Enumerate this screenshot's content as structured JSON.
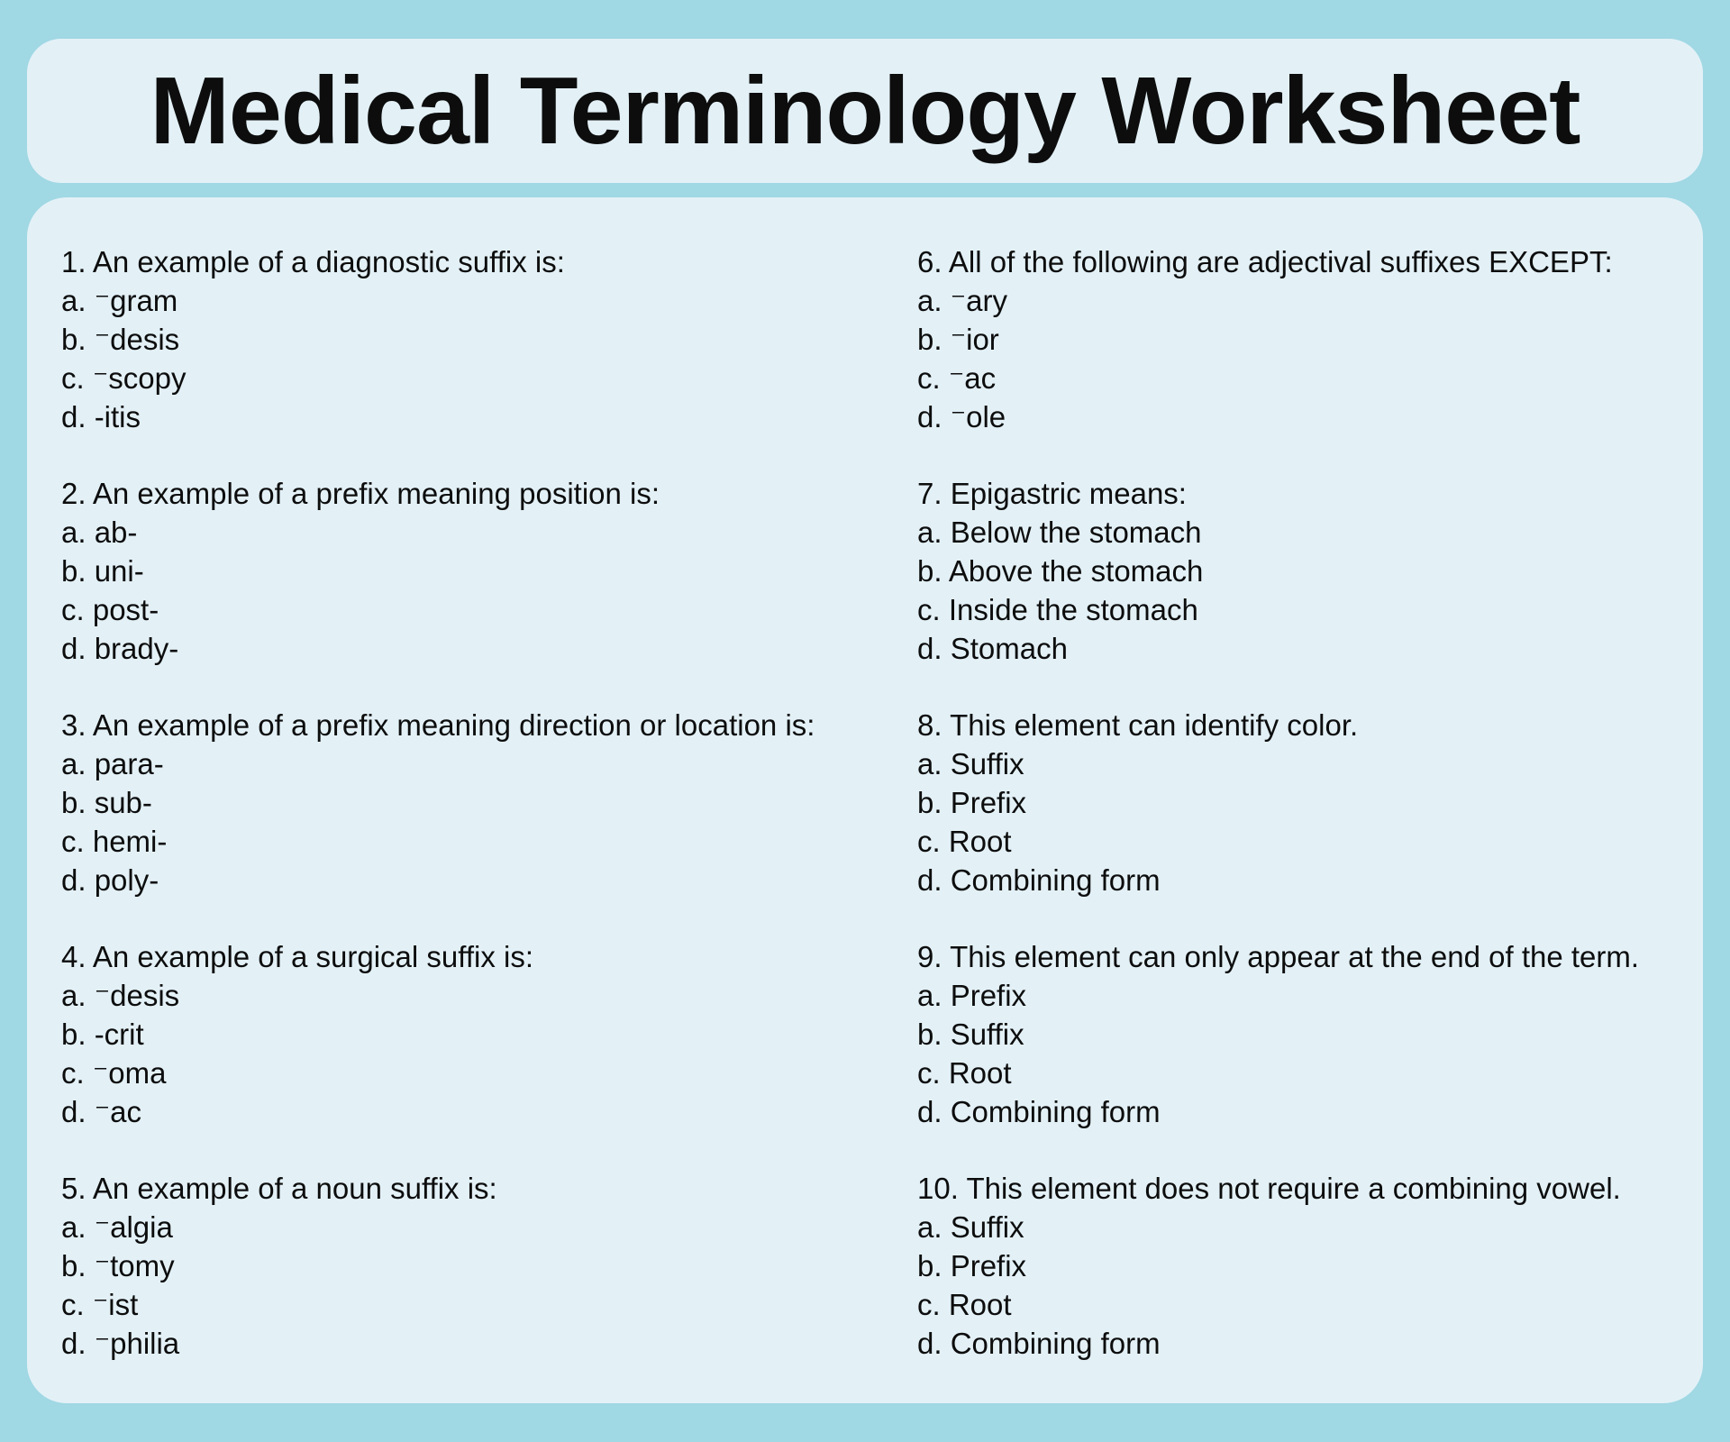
{
  "page": {
    "title": "Medical Terminology Worksheet",
    "colors": {
      "background": "#a0d8e4",
      "card": "#e3f1f7",
      "text": "#0d0d0d"
    }
  },
  "left": [
    {
      "prompt": "1. An example of a diagnostic suffix is:",
      "options": [
        "a. ⁻gram",
        "b. ⁻desis",
        "c. ⁻scopy",
        "d. -itis"
      ]
    },
    {
      "prompt": "2. An example of a prefix meaning position is:",
      "options": [
        "a. ab-",
        "b. uni-",
        "c. post-",
        "d. brady-"
      ]
    },
    {
      "prompt": "3. An example of a prefix meaning direction or location is:",
      "options": [
        "a. para-",
        "b. sub-",
        "c. hemi-",
        "d. poly-"
      ]
    },
    {
      "prompt": "4. An example of a surgical suffix is:",
      "options": [
        "a. ⁻desis",
        "b. -crit",
        "c. ⁻oma",
        "d. ⁻ac"
      ]
    },
    {
      "prompt": "5. An example of a noun suffix is:",
      "options": [
        "a. ⁻algia",
        "b. ⁻tomy",
        "c. ⁻ist",
        "d. ⁻philia"
      ]
    }
  ],
  "right": [
    {
      "prompt": "6. All of the following are adjectival suffixes EXCEPT:",
      "options": [
        "a. ⁻ary",
        "b. ⁻ior",
        "c. ⁻ac",
        "d. ⁻ole"
      ]
    },
    {
      "prompt": "7. Epigastric means:",
      "options": [
        "a. Below the stomach",
        "b. Above the stomach",
        "c. Inside the stomach",
        "d. Stomach"
      ]
    },
    {
      "prompt": "8. This element can identify color.",
      "options": [
        "a. Suffix",
        "b. Prefix",
        "c. Root",
        "d. Combining form"
      ]
    },
    {
      "prompt": "9. This element can only appear at the end of the term.",
      "options": [
        "a. Prefix",
        "b. Suffix",
        "c. Root",
        "d. Combining form"
      ]
    },
    {
      "prompt": "10. This element does not require a combining vowel.",
      "options": [
        "a. Suffix",
        "b. Prefix",
        "c. Root",
        "d. Combining form"
      ]
    }
  ]
}
